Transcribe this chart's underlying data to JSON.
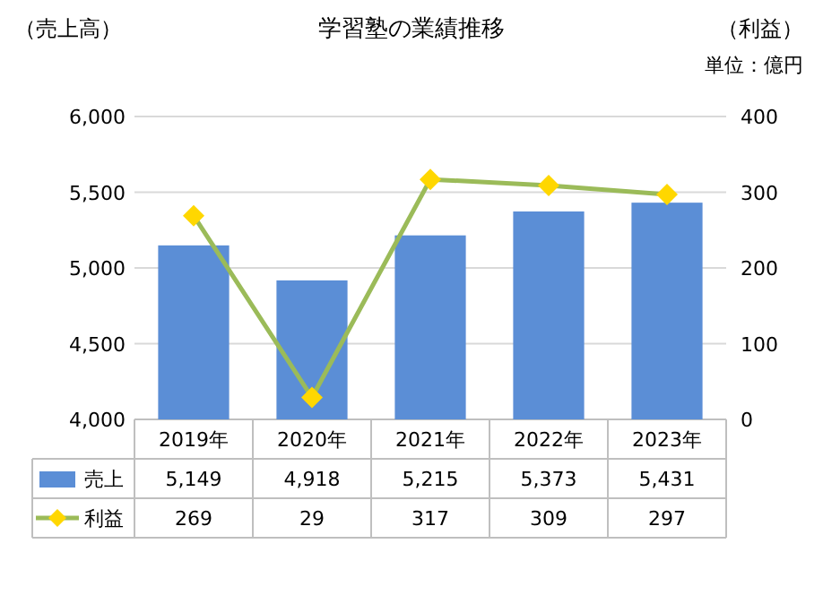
{
  "chart_data": {
    "type": "bar",
    "title": "学習塾の業績推移",
    "ylabel": "（売上高）",
    "y2label": "（利益）",
    "annotations": [
      "単位：億円"
    ],
    "categories": [
      "2019年",
      "2020年",
      "2021年",
      "2022年",
      "2023年"
    ],
    "series": [
      {
        "name": "売上",
        "color": "#5b8ed6",
        "values": [
          5149,
          4918,
          5215,
          5373,
          5431
        ],
        "value_labels": [
          "5,149",
          "4,918",
          "5,215",
          "5,373",
          "5,431"
        ]
      },
      {
        "name": "利益",
        "type": "line",
        "axis": "y2",
        "color": "#9bbb59",
        "marker": "diamond",
        "values": [
          269,
          29,
          317,
          309,
          297
        ]
      }
    ],
    "ylim": [
      4000,
      6000
    ],
    "yticks": [
      {
        "value": 4000,
        "label": "4,000"
      },
      {
        "value": 4500,
        "label": "4,500"
      },
      {
        "value": 5000,
        "label": "5,000"
      },
      {
        "value": 5500,
        "label": "5,500"
      },
      {
        "value": 6000,
        "label": "6,000"
      }
    ],
    "y2lim": [
      0,
      400
    ],
    "y2ticks": [
      0,
      100,
      200,
      300,
      400
    ],
    "grid": "y",
    "legend": "bottom",
    "data_labels": true
  }
}
